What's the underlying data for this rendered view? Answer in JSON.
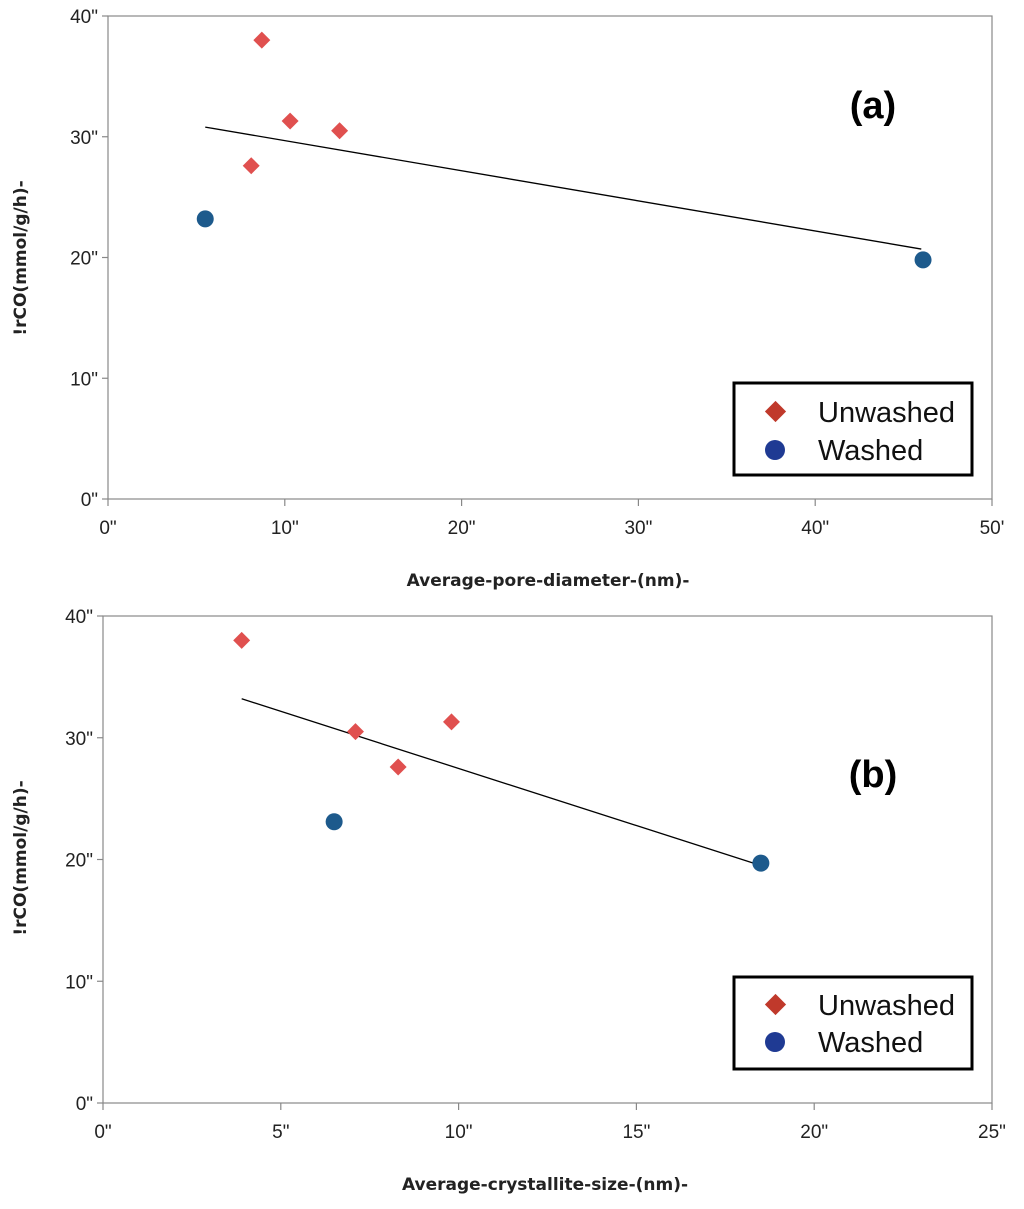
{
  "chart_data": [
    {
      "type": "scatter",
      "panel_label": "(a)",
      "xlabel": "Average-pore-diameter-(nm)-",
      "ylabel": "!rCO(mmol/g/h)-",
      "xlim": [
        0,
        50
      ],
      "ylim": [
        0,
        40
      ],
      "xticks": [
        0,
        10,
        20,
        30,
        40,
        50
      ],
      "yticks": [
        0,
        10,
        20,
        30,
        40
      ],
      "xtick_labels": [
        "0\"",
        "10\"",
        "20\"",
        "30\"",
        "40\"",
        "50'"
      ],
      "ytick_labels": [
        "0\"",
        "10\"",
        "20\"",
        "30\"",
        "40\""
      ],
      "grid": false,
      "legend_position": "bottom-right",
      "series": [
        {
          "name": "Unwashed",
          "marker": "diamond",
          "color": "#e0504f",
          "legend_color": "#c0392b",
          "points": [
            [
              8.7,
              38.0
            ],
            [
              10.3,
              31.3
            ],
            [
              13.1,
              30.5
            ],
            [
              8.1,
              27.6
            ]
          ]
        },
        {
          "name": "Washed",
          "marker": "circle",
          "color": "#1d5a8c",
          "legend_color": "#1f3a93",
          "points": [
            [
              5.5,
              23.2
            ],
            [
              46.1,
              19.8
            ]
          ]
        }
      ],
      "trendline": {
        "x": [
          5.5,
          46.0
        ],
        "y": [
          30.8,
          20.7
        ]
      }
    },
    {
      "type": "scatter",
      "panel_label": "(b)",
      "xlabel": "Average-crystallite-size-(nm)-",
      "ylabel": "!rCO(mmol/g/h)-",
      "xlim": [
        0,
        25
      ],
      "ylim": [
        0,
        40
      ],
      "xticks": [
        0,
        5,
        10,
        15,
        20,
        25
      ],
      "yticks": [
        0,
        10,
        20,
        30,
        40
      ],
      "xtick_labels": [
        "0\"",
        "5\"",
        "10\"",
        "15\"",
        "20\"",
        "25\""
      ],
      "ytick_labels": [
        "0\"",
        "10\"",
        "20\"",
        "30\"",
        "40\""
      ],
      "grid": false,
      "legend_position": "bottom-right",
      "series": [
        {
          "name": "Unwashed",
          "marker": "diamond",
          "color": "#e0504f",
          "legend_color": "#c0392b",
          "points": [
            [
              3.9,
              38.0
            ],
            [
              7.1,
              30.5
            ],
            [
              9.8,
              31.3
            ],
            [
              8.3,
              27.6
            ]
          ]
        },
        {
          "name": "Washed",
          "marker": "circle",
          "color": "#1d5a8c",
          "legend_color": "#1f3a93",
          "points": [
            [
              6.5,
              23.1
            ],
            [
              18.5,
              19.7
            ]
          ]
        }
      ],
      "trendline": {
        "x": [
          3.9,
          18.4
        ],
        "y": [
          33.2,
          19.6
        ]
      }
    }
  ]
}
